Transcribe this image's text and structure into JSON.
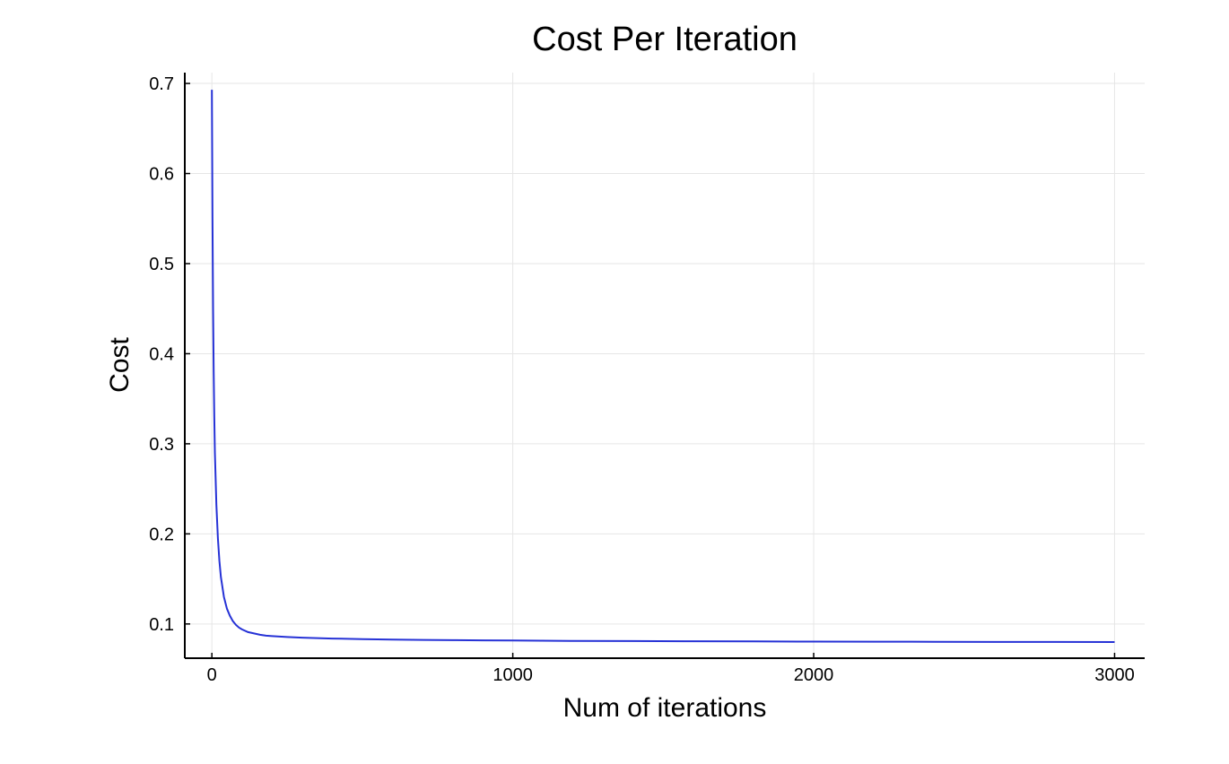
{
  "chart_data": {
    "type": "line",
    "title": "Cost Per Iteration",
    "xlabel": "Num of iterations",
    "ylabel": "Cost",
    "xlim": [
      -90,
      3100
    ],
    "ylim": [
      0.062,
      0.712
    ],
    "x_ticks": [
      0,
      1000,
      2000,
      3000
    ],
    "y_ticks": [
      0.1,
      0.2,
      0.3,
      0.4,
      0.5,
      0.6,
      0.7
    ],
    "y_tick_labels": [
      "0.1",
      "0.2",
      "0.3",
      "0.4",
      "0.5",
      "0.6",
      "0.7"
    ],
    "grid": true,
    "legend": "none",
    "series": [
      {
        "color": "#2632d6",
        "x": [
          0,
          2,
          4,
          6,
          8,
          10,
          15,
          20,
          25,
          30,
          40,
          50,
          60,
          70,
          80,
          90,
          100,
          120,
          140,
          160,
          180,
          200,
          250,
          300,
          350,
          400,
          500,
          600,
          700,
          800,
          900,
          1000,
          1200,
          1400,
          1600,
          1800,
          2000,
          2200,
          2400,
          2600,
          2800,
          3000
        ],
        "values": [
          0.693,
          0.55,
          0.45,
          0.38,
          0.33,
          0.29,
          0.232,
          0.195,
          0.17,
          0.152,
          0.13,
          0.117,
          0.109,
          0.103,
          0.099,
          0.096,
          0.094,
          0.091,
          0.0895,
          0.088,
          0.087,
          0.0865,
          0.0855,
          0.0848,
          0.0843,
          0.0838,
          0.0832,
          0.0827,
          0.0823,
          0.082,
          0.0818,
          0.0816,
          0.0812,
          0.081,
          0.0808,
          0.0806,
          0.0804,
          0.0803,
          0.0802,
          0.0801,
          0.08,
          0.0799
        ]
      }
    ]
  }
}
